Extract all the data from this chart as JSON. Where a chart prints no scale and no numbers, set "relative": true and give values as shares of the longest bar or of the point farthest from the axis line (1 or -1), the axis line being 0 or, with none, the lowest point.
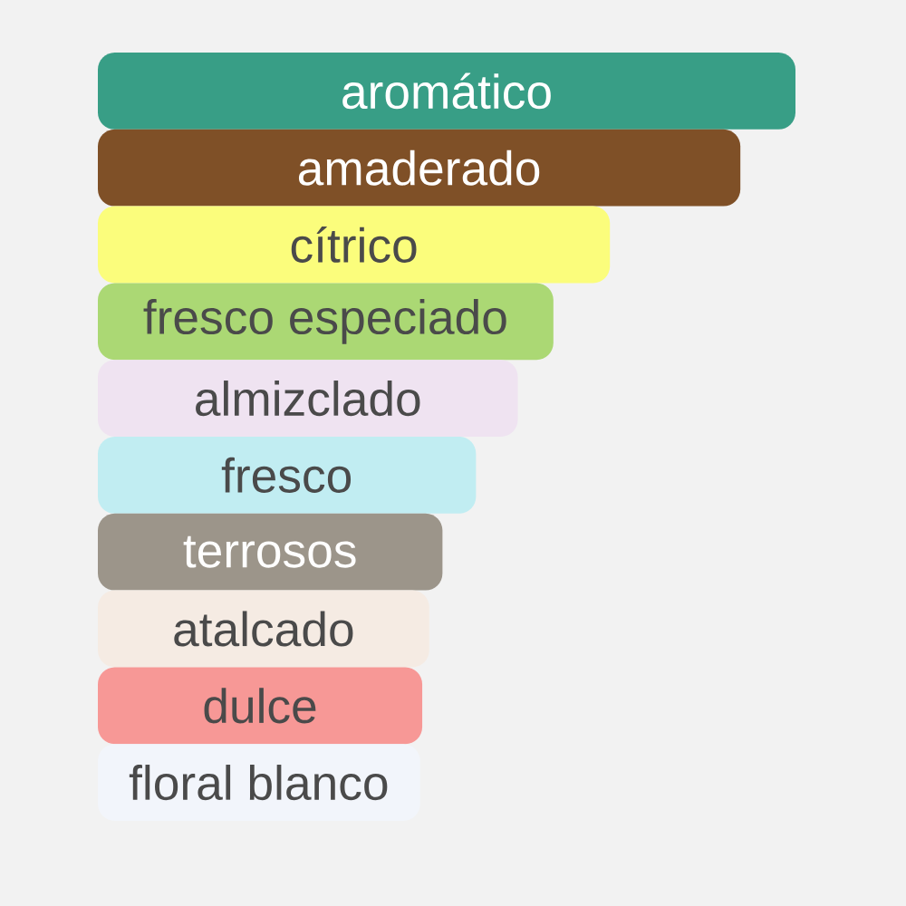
{
  "chart_data": {
    "type": "bar",
    "orientation": "horizontal",
    "relative": true,
    "categories": [
      "aromático",
      "amaderado",
      "cítrico",
      "fresco especiado",
      "almizclado",
      "fresco",
      "terrosos",
      "atalcado",
      "dulce",
      "floral blanco"
    ],
    "values": [
      1,
      0.921,
      0.734,
      0.653,
      0.602,
      0.542,
      0.494,
      0.475,
      0.465,
      0.462
    ],
    "colors": [
      "#389e86",
      "#7f5027",
      "#fbfd7c",
      "#abd874",
      "#efe3f1",
      "#c1edf2",
      "#9c958a",
      "#f5ebe3",
      "#f79896",
      "#f2f5fb"
    ]
  }
}
